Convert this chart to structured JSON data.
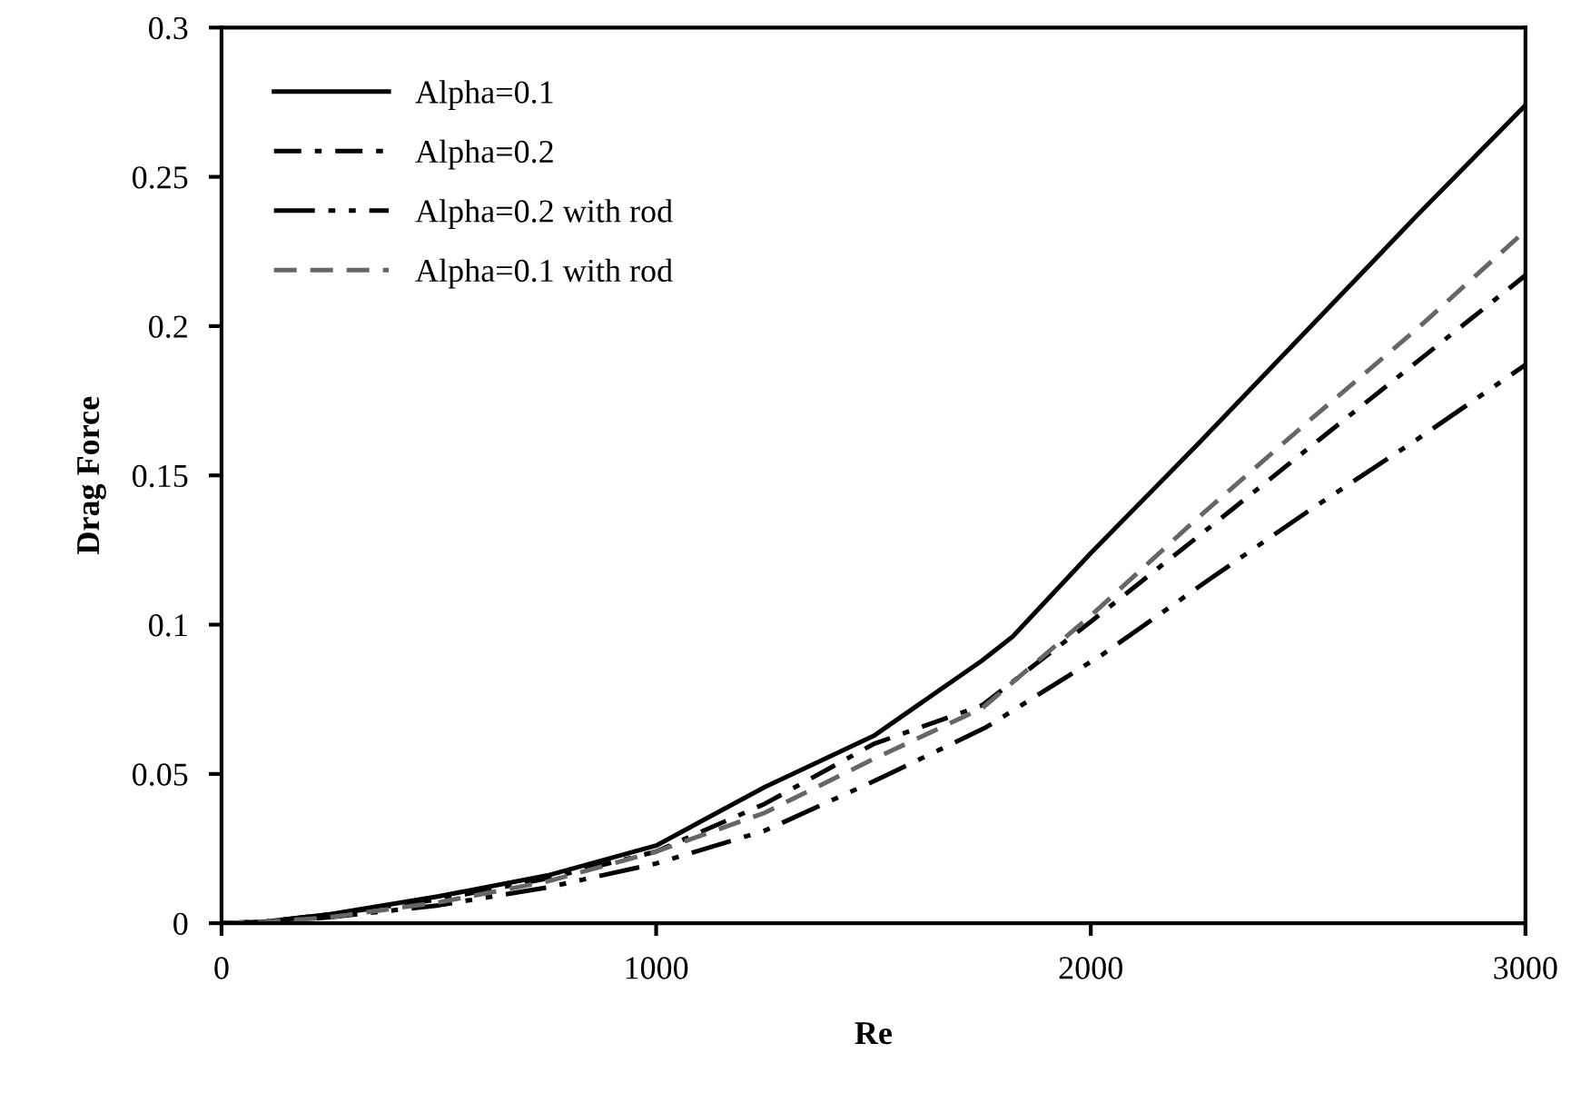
{
  "chart_data": {
    "type": "line",
    "xlabel": "Re",
    "ylabel": "Drag Force",
    "xlim": [
      0,
      3000
    ],
    "xticks": [
      0,
      1000,
      2000,
      3000
    ],
    "ylim": [
      0,
      0.3
    ],
    "yticks": [
      0,
      0.05,
      0.1,
      0.15,
      0.2,
      0.25,
      0.3
    ],
    "grid": false,
    "legend": "top left",
    "marker": "none",
    "series": [
      {
        "name": "Alpha=0.1",
        "color": "#000000",
        "line_style": "solid",
        "x": [
          0,
          100,
          250,
          500,
          750,
          1000,
          1250,
          1500,
          1750,
          1820,
          2000,
          2250,
          2500,
          2750,
          3000
        ],
        "values": [
          0,
          0.0005,
          0.003,
          0.009,
          0.016,
          0.026,
          0.0456,
          0.0627,
          0.088,
          0.096,
          0.124,
          0.161,
          0.199,
          0.237,
          0.274
        ]
      },
      {
        "name": "Alpha=0.2",
        "color": "#000000",
        "line_style": "dashdot",
        "x": [
          0,
          100,
          250,
          500,
          750,
          1000,
          1250,
          1500,
          1750,
          2000,
          2277,
          2500,
          2750,
          3000
        ],
        "values": [
          0,
          0.0005,
          0.003,
          0.008,
          0.015,
          0.024,
          0.04,
          0.06,
          0.073,
          0.101,
          0.133,
          0.159,
          0.188,
          0.217
        ]
      },
      {
        "name": "Alpha=0.2 with rod",
        "color": "#000000",
        "line_style": "dashdotdot",
        "x": [
          0,
          100,
          250,
          500,
          750,
          1000,
          1250,
          1500,
          1760,
          2027,
          2277,
          2500,
          2750,
          3000
        ],
        "values": [
          0,
          0.0003,
          0.002,
          0.006,
          0.012,
          0.02,
          0.031,
          0.0475,
          0.0657,
          0.09,
          0.1156,
          0.138,
          0.162,
          0.187
        ]
      },
      {
        "name": "Alpha=0.1 with rod",
        "color": "#666666",
        "line_style": "dashed",
        "x": [
          0,
          100,
          250,
          500,
          750,
          1000,
          1250,
          1500,
          1750,
          2000,
          2248,
          2500,
          2750,
          3000
        ],
        "values": [
          0,
          0.0004,
          0.002,
          0.007,
          0.014,
          0.024,
          0.037,
          0.055,
          0.072,
          0.103,
          0.136,
          0.168,
          0.199,
          0.232
        ]
      }
    ]
  }
}
